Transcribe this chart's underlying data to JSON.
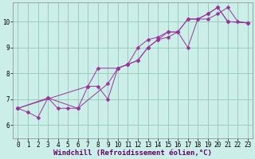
{
  "xlabel": "Windchill (Refroidissement éolien,°C)",
  "bg_color": "#cceee8",
  "line_color": "#993399",
  "xlim": [
    -0.5,
    23.5
  ],
  "ylim": [
    5.5,
    10.75
  ],
  "xticks": [
    0,
    1,
    2,
    3,
    4,
    5,
    6,
    7,
    8,
    9,
    10,
    11,
    12,
    13,
    14,
    15,
    16,
    17,
    18,
    19,
    20,
    21,
    22,
    23
  ],
  "yticks": [
    6,
    7,
    8,
    9,
    10
  ],
  "grid_color": "#99ccbb",
  "tick_fontsize": 5.5,
  "xlabel_fontsize": 6.5,
  "series1_x": [
    0,
    1,
    2,
    3,
    4,
    5,
    6,
    7,
    8,
    9,
    10,
    11,
    12,
    13,
    14,
    15,
    16,
    17,
    18,
    19,
    20,
    21,
    22,
    23
  ],
  "series1_y": [
    6.65,
    6.5,
    6.3,
    7.05,
    6.65,
    6.65,
    6.65,
    7.5,
    7.5,
    7.0,
    8.2,
    8.35,
    8.5,
    9.0,
    9.3,
    9.4,
    9.6,
    9.0,
    10.1,
    10.1,
    10.3,
    10.55,
    10.0,
    9.95
  ],
  "series2_x": [
    0,
    3,
    6,
    9,
    10,
    11,
    12,
    13,
    14,
    15,
    16,
    17,
    18,
    19,
    20,
    21,
    23
  ],
  "series2_y": [
    6.65,
    7.05,
    6.65,
    7.6,
    8.2,
    8.35,
    9.0,
    9.3,
    9.4,
    9.6,
    9.6,
    10.1,
    10.1,
    10.3,
    10.55,
    10.0,
    9.95
  ],
  "series3_x": [
    0,
    7,
    8,
    10,
    11,
    12,
    13,
    14,
    15,
    16,
    17,
    18,
    19,
    20,
    21,
    23
  ],
  "series3_y": [
    6.65,
    7.5,
    8.2,
    8.2,
    8.35,
    8.5,
    9.0,
    9.3,
    9.6,
    9.6,
    10.1,
    10.1,
    10.3,
    10.55,
    10.0,
    9.95
  ]
}
